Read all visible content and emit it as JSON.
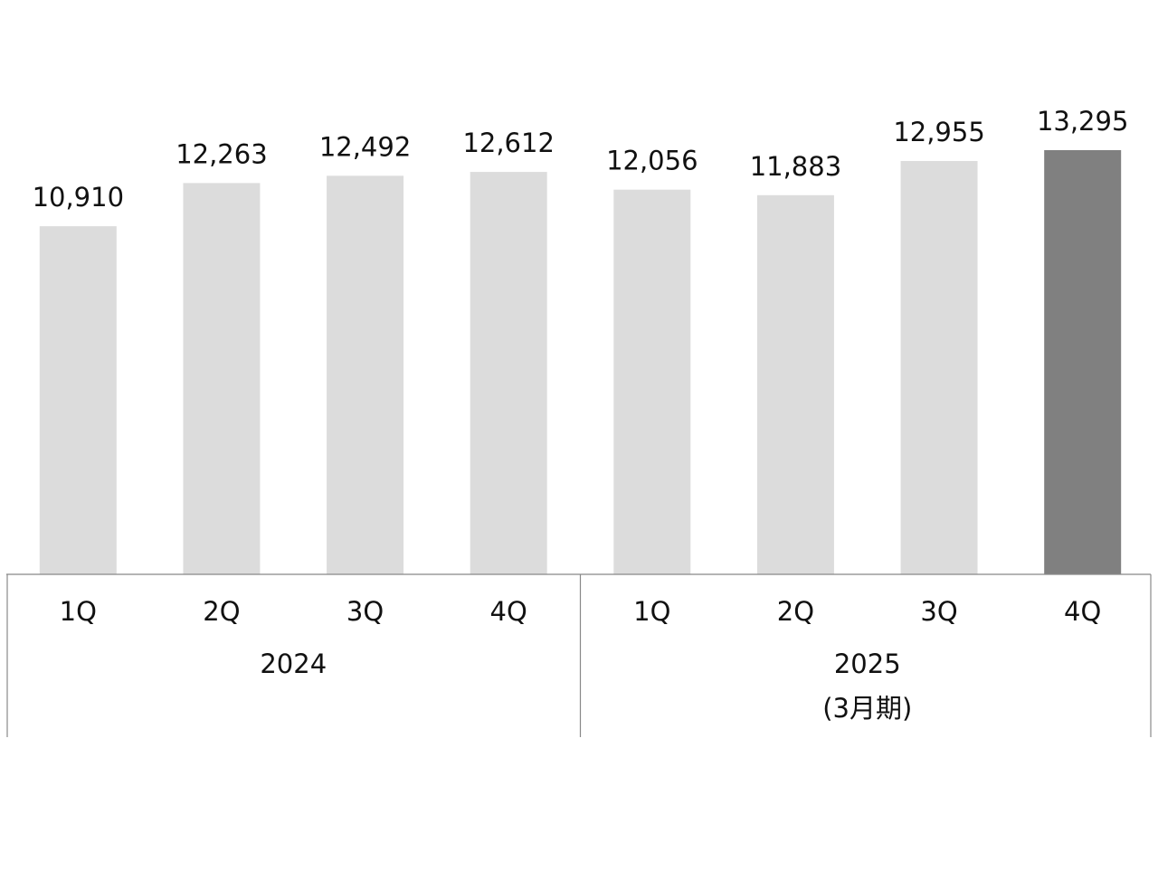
{
  "chart_data": {
    "type": "bar",
    "categories": [
      "1Q",
      "2Q",
      "3Q",
      "4Q",
      "1Q",
      "2Q",
      "3Q",
      "4Q"
    ],
    "values": [
      10910,
      12263,
      12492,
      12612,
      12056,
      11883,
      12955,
      13295
    ],
    "value_labels": [
      "10,910",
      "12,263",
      "12,492",
      "12,612",
      "12,056",
      "11,883",
      "12,955",
      "13,295"
    ],
    "colors": [
      "#dcdcdc",
      "#dcdcdc",
      "#dcdcdc",
      "#dcdcdc",
      "#dcdcdc",
      "#dcdcdc",
      "#dcdcdc",
      "#808080"
    ],
    "groups": [
      {
        "label": "2024"
      },
      {
        "label": "2025",
        "note": "(3月期)"
      }
    ]
  }
}
